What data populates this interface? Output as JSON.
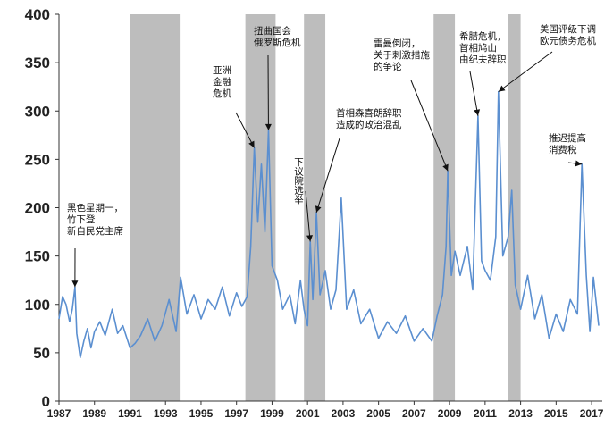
{
  "chart_data": {
    "type": "line",
    "title": "",
    "xlabel": "",
    "ylabel": "",
    "xlim": [
      1987,
      2017.6
    ],
    "ylim": [
      0,
      400
    ],
    "y_ticks": [
      0,
      50,
      100,
      150,
      200,
      250,
      300,
      350,
      400
    ],
    "x_ticks": [
      1987,
      1989,
      1991,
      1993,
      1995,
      1997,
      1999,
      2001,
      2003,
      2005,
      2007,
      2009,
      2011,
      2013,
      2015,
      2017
    ],
    "grid": false,
    "legend": "none",
    "series_color": "#5b8fd0",
    "shade_color": "#bdbdbd",
    "shaded_periods": [
      [
        1991.0,
        1993.8
      ],
      [
        1997.5,
        1999.2
      ],
      [
        2000.8,
        2002.0
      ],
      [
        2008.1,
        2009.3
      ],
      [
        2012.3,
        2013.0
      ]
    ],
    "series": [
      {
        "x": [
          1987.0,
          1987.2,
          1987.4,
          1987.6,
          1987.75,
          1987.9,
          1988.0,
          1988.2,
          1988.4,
          1988.6,
          1988.8,
          1989.0,
          1989.3,
          1989.6,
          1990.0,
          1990.3,
          1990.6,
          1991.0,
          1991.3,
          1991.6,
          1992.0,
          1992.4,
          1992.8,
          1993.2,
          1993.6,
          1993.85,
          1994.2,
          1994.6,
          1995.0,
          1995.4,
          1995.8,
          1996.2,
          1996.6,
          1997.0,
          1997.3,
          1997.6,
          1997.8,
          1998.0,
          1998.2,
          1998.4,
          1998.6,
          1998.8,
          1999.0,
          1999.3,
          1999.6,
          2000.0,
          2000.3,
          2000.6,
          2000.8,
          2001.0,
          2001.15,
          2001.3,
          2001.5,
          2001.7,
          2002.0,
          2002.3,
          2002.6,
          2002.9,
          2003.2,
          2003.6,
          2004.0,
          2004.5,
          2005.0,
          2005.5,
          2006.0,
          2006.5,
          2007.0,
          2007.5,
          2008.0,
          2008.3,
          2008.6,
          2008.8,
          2008.9,
          2009.1,
          2009.3,
          2009.6,
          2010.0,
          2010.3,
          2010.6,
          2010.8,
          2011.0,
          2011.3,
          2011.6,
          2011.75,
          2012.0,
          2012.3,
          2012.5,
          2012.7,
          2013.0,
          2013.4,
          2013.8,
          2014.2,
          2014.6,
          2015.0,
          2015.4,
          2015.8,
          2016.2,
          2016.45,
          2016.7,
          2016.9,
          2017.1,
          2017.4
        ],
        "values": [
          85,
          108,
          100,
          82,
          95,
          118,
          70,
          45,
          62,
          75,
          55,
          72,
          82,
          68,
          95,
          70,
          78,
          55,
          60,
          68,
          85,
          62,
          78,
          105,
          72,
          128,
          90,
          110,
          85,
          105,
          95,
          118,
          88,
          112,
          98,
          108,
          160,
          262,
          185,
          245,
          175,
          280,
          140,
          125,
          95,
          110,
          80,
          125,
          95,
          78,
          165,
          105,
          195,
          110,
          135,
          95,
          115,
          210,
          95,
          115,
          80,
          95,
          65,
          82,
          70,
          88,
          62,
          75,
          62,
          88,
          110,
          160,
          238,
          130,
          155,
          130,
          160,
          115,
          295,
          145,
          135,
          125,
          170,
          320,
          150,
          170,
          218,
          120,
          95,
          130,
          85,
          110,
          65,
          90,
          72,
          105,
          90,
          245,
          130,
          72,
          128,
          78
        ]
      }
    ],
    "annotations": [
      {
        "lines": [
          "黑色星期一，",
          "竹下登",
          "新自民党主席"
        ],
        "x": 1987.9,
        "y": 118
      },
      {
        "lines": [
          "亚洲",
          "金融",
          "危机"
        ],
        "x": 1998.0,
        "y": 262
      },
      {
        "lines": [
          "扭曲国会",
          "俄罗斯危机"
        ],
        "x": 1998.8,
        "y": 280
      },
      {
        "lines": [
          "下议院选举"
        ],
        "x": 2001.15,
        "y": 165
      },
      {
        "lines": [
          "首相森喜朗辞职",
          "造成的政治混乱"
        ],
        "x": 2001.5,
        "y": 195
      },
      {
        "lines": [
          "雷曼倒闭，",
          "关于刺激措施",
          "的争论"
        ],
        "x": 2008.9,
        "y": 238
      },
      {
        "lines": [
          "希腊危机，",
          "首相鸠山",
          "由纪夫辞职"
        ],
        "x": 2010.6,
        "y": 295
      },
      {
        "lines": [
          "美国评级下调",
          "欧元债务危机"
        ],
        "x": 2011.75,
        "y": 320
      },
      {
        "lines": [
          "推迟提高",
          "消费税"
        ],
        "x": 2016.45,
        "y": 245
      }
    ]
  }
}
